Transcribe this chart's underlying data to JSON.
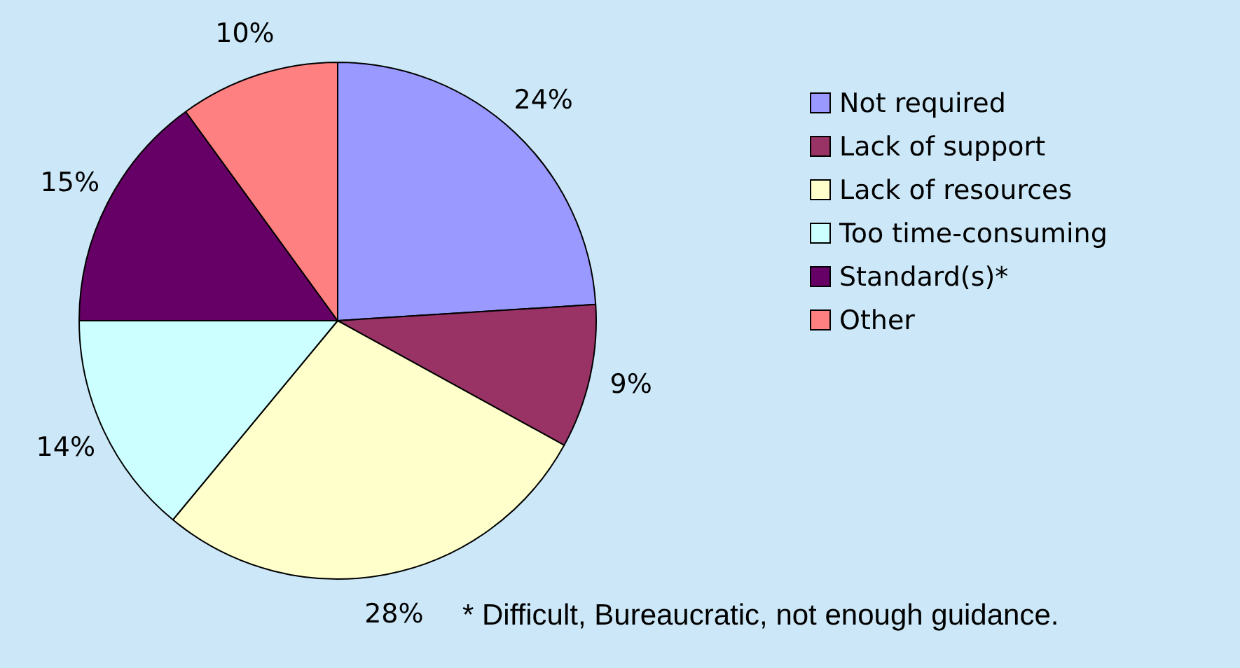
{
  "chart_data": {
    "type": "pie",
    "categories": [
      "Not required",
      "Lack of support",
      "Lack of resources",
      "Too time-consuming",
      "Standard(s)*",
      "Other"
    ],
    "values": [
      24,
      9,
      28,
      14,
      15,
      10
    ],
    "value_labels": [
      "24%",
      "9%",
      "28%",
      "14%",
      "15%",
      "10%"
    ],
    "colors": [
      "#9999ff",
      "#993366",
      "#ffffcc",
      "#ccffff",
      "#660066",
      "#ff8080"
    ],
    "legend": "right",
    "annotations": [
      "* Difficult, Bureaucratic, not enough guidance."
    ]
  }
}
